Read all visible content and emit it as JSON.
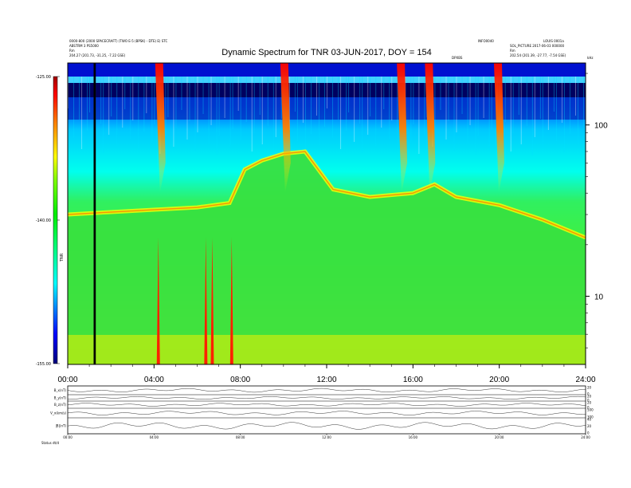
{
  "chart_data": {
    "type": "heatmap",
    "title": "Dynamic Spectrum for TNR 03-JUN-2017, DOY = 154",
    "header_left": [
      "0000-800 (2000 SPACECRAFT) (TWO E-5 (BPSK) - DTE) E) STC",
      "ABSTRM 3 PS5000",
      "Rm",
      "204.27 (201.73, -31.25, -7.22 GSE)"
    ],
    "header_right": [
      "INFO0040",
      "LOUIS 0001a",
      "SOL_PICTURE 2017-06-03 000000",
      "Rm",
      "202.54 (201.39, -27.77, -7.54 GSE)"
    ],
    "annotation_top": "DPXBS",
    "right_corner_label": "kHz",
    "x_ticks": [
      "00:00",
      "04:00",
      "08:00",
      "12:00",
      "16:00",
      "20:00",
      "24:00"
    ],
    "x_range": [
      0,
      24
    ],
    "y_ticks": [
      "100",
      "10"
    ],
    "y_scale": "log",
    "y_range": [
      4,
      230
    ],
    "colorbar": {
      "label": "TNR",
      "ticks": [
        "-125.00",
        "-140.00",
        "-155.00"
      ],
      "range": [
        -155,
        -125
      ],
      "colors": [
        "#000080",
        "#0000ff",
        "#00ffff",
        "#00ff00",
        "#ffff00",
        "#ff8000",
        "#ff0000",
        "#800000"
      ]
    },
    "features": [
      {
        "name": "black-cutoff",
        "t_start": 1.2,
        "t_end": 1.3
      },
      {
        "name": "plasma-line",
        "points": [
          [
            0,
            30
          ],
          [
            2,
            31
          ],
          [
            4,
            32
          ],
          [
            6,
            33
          ],
          [
            7.5,
            35
          ],
          [
            8.2,
            55
          ],
          [
            9,
            62
          ],
          [
            10,
            68
          ],
          [
            11,
            70
          ],
          [
            12.3,
            42
          ],
          [
            14,
            38
          ],
          [
            16,
            40
          ],
          [
            17,
            45
          ],
          [
            18,
            38
          ],
          [
            20,
            34
          ],
          [
            22,
            28
          ],
          [
            24,
            22
          ]
        ]
      },
      {
        "name": "type-iii-bursts",
        "times": [
          4.2,
          10.0,
          15.4,
          16.7,
          19.9
        ]
      },
      {
        "name": "low-frequency-spikes",
        "times": [
          4.2,
          6.4,
          6.7,
          7.6
        ]
      }
    ],
    "lower_panels": [
      {
        "label": "B_x(nT)",
        "right_ticks": [
          "20",
          "0"
        ]
      },
      {
        "label": "B_y(nT)",
        "right_ticks": [
          "20",
          "0"
        ]
      },
      {
        "label": "B_z(nT)",
        "right_ticks": [
          "20",
          "0"
        ]
      },
      {
        "label": "V_x(km/s)",
        "right_ticks": [
          "500",
          "300"
        ]
      },
      {
        "label": "|B|(nT)",
        "right_ticks": [
          "40",
          "20",
          "0"
        ]
      }
    ],
    "lower_x_ticks": [
      "00:00",
      "04:00",
      "08:00",
      "12:00",
      "16:00",
      "20:00",
      "24:00"
    ],
    "footer_label": "Status  dt/d"
  }
}
